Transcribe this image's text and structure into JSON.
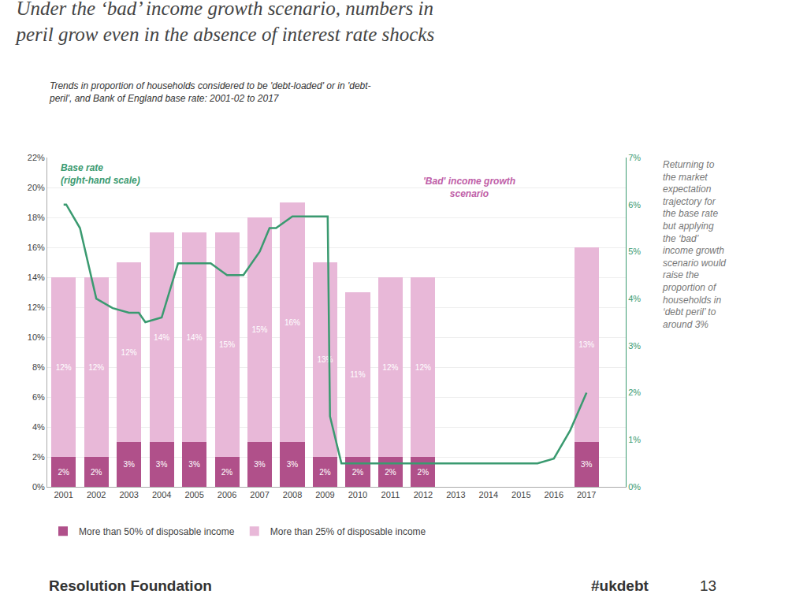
{
  "chart_data": {
    "type": "bar",
    "stacked": true,
    "title": "Under the ‘bad’ income growth scenario, numbers in\nperil grow even in the absence of interest rate shocks",
    "subtitle": "Trends in proportion of households considered to be 'debt-loaded' or in 'debt-\nperil', and Bank of England base rate: 2001-02 to 2017",
    "x": [
      2001,
      2002,
      2003,
      2004,
      2005,
      2006,
      2007,
      2008,
      2009,
      2010,
      2011,
      2012,
      2017
    ],
    "series": [
      {
        "name": "More than 50% of disposable income",
        "color": "#b0508a",
        "values": [
          2,
          2,
          3,
          3,
          3,
          2,
          3,
          3,
          2,
          2,
          2,
          2,
          3
        ],
        "value_labels": [
          "2%",
          "2%",
          "3%",
          "3%",
          "3%",
          "2%",
          "3%",
          "3%",
          "2%",
          "2%",
          "2%",
          "2%",
          "3%"
        ]
      },
      {
        "name": "More than 25% of disposable income",
        "color": "#e8b8d8",
        "values": [
          12,
          12,
          12,
          14,
          14,
          15,
          15,
          16,
          13,
          11,
          12,
          12,
          13
        ],
        "value_labels": [
          "12%",
          "12%",
          "12%",
          "14%",
          "14%",
          "15%",
          "15%",
          "16%",
          "13%",
          "11%",
          "12%",
          "12%",
          "13%"
        ]
      },
      {
        "type": "line",
        "axis": "y2",
        "color": "#3a9a70",
        "x": [
          2001,
          2001.08,
          2001.5,
          2002,
          2002.5,
          2003,
          2003.3,
          2003.5,
          2004,
          2004.5,
          2005,
          2005.08,
          2005.5,
          2006,
          2006.5,
          2007,
          2007.3,
          2007.5,
          2008,
          2008.5,
          2009,
          2009.08,
          2009.15,
          2009.5,
          2010,
          2010.5,
          2011,
          2011.5,
          2012,
          2012.5,
          2013,
          2013.5,
          2014,
          2014.5,
          2015,
          2015.5,
          2016,
          2016.5,
          2017
        ],
        "values": [
          6.0,
          6.0,
          5.5,
          4.0,
          3.8,
          3.7,
          3.7,
          3.5,
          3.6,
          4.75,
          4.75,
          4.75,
          4.75,
          4.5,
          4.5,
          5.0,
          5.5,
          5.5,
          5.75,
          5.75,
          5.75,
          5.75,
          1.5,
          0.5,
          0.5,
          0.5,
          0.5,
          0.5,
          0.5,
          0.5,
          0.5,
          0.5,
          0.5,
          0.5,
          0.5,
          0.5,
          0.6,
          1.2,
          2.0
        ]
      }
    ],
    "xlim": [
      2000.5,
      2018.2
    ],
    "xticks": [
      2001,
      2002,
      2003,
      2004,
      2005,
      2006,
      2007,
      2008,
      2009,
      2010,
      2011,
      2012,
      2013,
      2014,
      2015,
      2016,
      2017
    ],
    "ylim": [
      0,
      22
    ],
    "yticks": [
      {
        "value": 0,
        "label": "0%"
      },
      {
        "value": 2,
        "label": "2%"
      },
      {
        "value": 4,
        "label": "4%"
      },
      {
        "value": 6,
        "label": "6%"
      },
      {
        "value": 8,
        "label": "8%"
      },
      {
        "value": 10,
        "label": "10%"
      },
      {
        "value": 12,
        "label": "12%"
      },
      {
        "value": 14,
        "label": "14%"
      },
      {
        "value": 16,
        "label": "16%"
      },
      {
        "value": 18,
        "label": "18%"
      },
      {
        "value": 20,
        "label": "20%"
      },
      {
        "value": 22,
        "label": "22%"
      }
    ],
    "y2lim": [
      0,
      7
    ],
    "y2ticks": [
      {
        "value": 0,
        "label": "0%"
      },
      {
        "value": 1,
        "label": "1%"
      },
      {
        "value": 2,
        "label": "2%"
      },
      {
        "value": 3,
        "label": "3%"
      },
      {
        "value": 4,
        "label": "4%"
      },
      {
        "value": 5,
        "label": "5%"
      },
      {
        "value": 6,
        "label": "6%"
      },
      {
        "value": 7,
        "label": "7%"
      }
    ],
    "grid": true,
    "legend": "bottom left",
    "data_labels": true,
    "annotations": [
      {
        "text": "Base rate\n(right-hand scale)",
        "color": "#3a9a70"
      },
      {
        "text": "'Bad' income growth\nscenario",
        "color": "#c060a8"
      }
    ],
    "side_note": "Returning to\nthe market\nexpectation\ntrajectory for\nthe base rate\nbut applying\nthe ‘bad’\nincome growth\nscenario would\nraise the\nproportion of\nhouseholds in\n‘debt peril’ to\naround 3%",
    "footer": [
      "Resolution Foundation",
      "#ukdebt",
      "13"
    ]
  }
}
